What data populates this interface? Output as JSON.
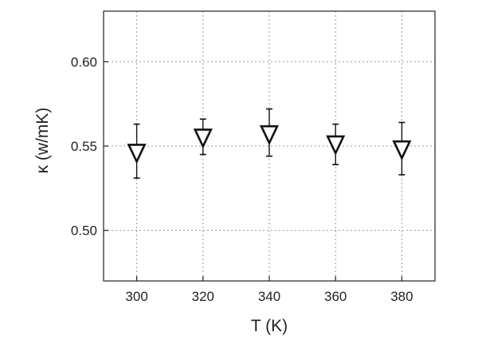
{
  "chart_data": {
    "type": "scatter",
    "xlabel": "T (K)",
    "ylabel": "κ (w/mK)",
    "xlim": [
      290,
      390
    ],
    "ylim": [
      0.47,
      0.63
    ],
    "x_ticks": [
      300,
      320,
      340,
      360,
      380
    ],
    "x_tick_labels": [
      "300",
      "320",
      "340",
      "360",
      "380"
    ],
    "y_ticks": [
      0.5,
      0.55,
      0.6
    ],
    "y_tick_labels": [
      "0.50",
      "0.55",
      "0.60"
    ],
    "grid": true,
    "marker": "down-triangle-open",
    "series": [
      {
        "points": [
          {
            "x": 300,
            "y": 0.546,
            "err_low": 0.531,
            "err_high": 0.563
          },
          {
            "x": 320,
            "y": 0.555,
            "err_low": 0.545,
            "err_high": 0.566
          },
          {
            "x": 340,
            "y": 0.557,
            "err_low": 0.544,
            "err_high": 0.572
          },
          {
            "x": 360,
            "y": 0.551,
            "err_low": 0.539,
            "err_high": 0.563
          },
          {
            "x": 380,
            "y": 0.548,
            "err_low": 0.533,
            "err_high": 0.564
          }
        ]
      }
    ],
    "colors": {
      "marker": "#111111",
      "axis": "#222222",
      "grid": "#9a9a9a"
    }
  }
}
